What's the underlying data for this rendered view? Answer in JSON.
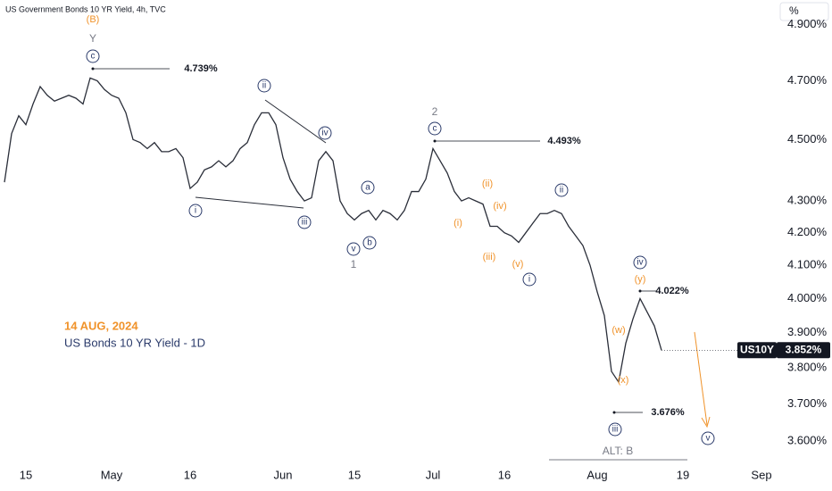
{
  "header": "US Government Bonds 10 YR Yield, 4h, TVC",
  "unit_label": "%",
  "date_note": "14 AUG, 2024",
  "chart_note": "US Bonds 10 YR Yield - 1D",
  "symbol": "US10Y",
  "last_label": "3.852%",
  "chart_data": {
    "type": "line",
    "log_scale": true,
    "grid": false,
    "color": "#2a2e39",
    "categories": [
      null,
      null,
      null,
      "15",
      null,
      null,
      null,
      null,
      null,
      null,
      null,
      null,
      null,
      null,
      null,
      "May",
      null,
      null,
      null,
      null,
      null,
      null,
      null,
      null,
      null,
      null,
      "16",
      null,
      null,
      null,
      null,
      null,
      null,
      null,
      null,
      null,
      null,
      null,
      null,
      "Jun",
      null,
      null,
      null,
      null,
      null,
      null,
      null,
      null,
      null,
      "15",
      null,
      null,
      null,
      null,
      null,
      null,
      null,
      null,
      null,
      null,
      "Jul",
      null,
      null,
      null,
      null,
      null,
      null,
      null,
      null,
      null,
      "16",
      null,
      null,
      null,
      null,
      null,
      null,
      null,
      null,
      null,
      null,
      null,
      null,
      "Aug",
      null,
      null,
      null,
      null,
      null,
      null,
      null,
      null,
      null,
      null,
      null,
      "19",
      null,
      null,
      null,
      null,
      null,
      null,
      null,
      null,
      null,
      null,
      "Sep",
      null
    ],
    "values": [
      4.36,
      4.52,
      4.58,
      4.55,
      4.62,
      4.68,
      4.65,
      4.63,
      4.64,
      4.65,
      4.64,
      4.62,
      4.71,
      4.7,
      4.67,
      4.65,
      4.64,
      4.59,
      4.5,
      4.49,
      4.47,
      4.49,
      4.46,
      4.46,
      4.47,
      4.44,
      4.34,
      4.36,
      4.4,
      4.41,
      4.43,
      4.41,
      4.43,
      4.47,
      4.49,
      4.55,
      4.59,
      4.59,
      4.55,
      4.44,
      4.37,
      4.33,
      4.3,
      4.31,
      4.43,
      4.46,
      4.43,
      4.3,
      4.26,
      4.24,
      4.26,
      4.27,
      4.24,
      4.27,
      4.26,
      4.24,
      4.27,
      4.33,
      4.33,
      4.37,
      4.47,
      4.43,
      4.39,
      4.33,
      4.3,
      4.31,
      4.3,
      4.29,
      4.22,
      4.22,
      4.2,
      4.19,
      4.17,
      4.2,
      4.23,
      4.26,
      4.26,
      4.27,
      4.26,
      4.22,
      4.19,
      4.16,
      4.1,
      4.02,
      3.95,
      3.79,
      3.76,
      3.87,
      3.94,
      4.0,
      3.96,
      3.92,
      3.85,
      null,
      null,
      null,
      null,
      null,
      null,
      null,
      null,
      null,
      null,
      null,
      null,
      null,
      null,
      null
    ],
    "ylim": [
      3.55,
      4.99
    ],
    "yticks": [
      {
        "value": 3.6,
        "label": "3.600%"
      },
      {
        "value": 3.7,
        "label": "3.700%"
      },
      {
        "value": 3.8,
        "label": "3.800%"
      },
      {
        "value": 3.9,
        "label": "3.900%"
      },
      {
        "value": 4.0,
        "label": "4.000%"
      },
      {
        "value": 4.1,
        "label": "4.100%"
      },
      {
        "value": 4.2,
        "label": "4.200%"
      },
      {
        "value": 4.3,
        "label": "4.300%"
      },
      {
        "value": 4.5,
        "label": "4.500%"
      },
      {
        "value": 4.7,
        "label": "4.700%"
      },
      {
        "value": 4.9,
        "label": "4.900%"
      }
    ],
    "annotations": [
      {
        "text": "(B)",
        "style": "orange"
      },
      {
        "text": "Y",
        "style": "gray"
      },
      {
        "text": "c",
        "style": "circle"
      },
      {
        "text": "4.739%",
        "style": "price"
      },
      {
        "text": "ii",
        "style": "circle"
      },
      {
        "text": "iv",
        "style": "circle"
      },
      {
        "text": "i",
        "style": "circle"
      },
      {
        "text": "iii",
        "style": "circle"
      },
      {
        "text": "v",
        "style": "circle"
      },
      {
        "text": "1",
        "style": "gray"
      },
      {
        "text": "a",
        "style": "circle"
      },
      {
        "text": "b",
        "style": "circle"
      },
      {
        "text": "2",
        "style": "gray"
      },
      {
        "text": "c",
        "style": "circle"
      },
      {
        "text": "4.493%",
        "style": "price"
      },
      {
        "text": "(ii)",
        "style": "orange"
      },
      {
        "text": "(iv)",
        "style": "orange"
      },
      {
        "text": "(i)",
        "style": "orange"
      },
      {
        "text": "(iii)",
        "style": "orange"
      },
      {
        "text": "(v)",
        "style": "orange"
      },
      {
        "text": "ii",
        "style": "circle"
      },
      {
        "text": "i",
        "style": "circle"
      },
      {
        "text": "iv",
        "style": "circle"
      },
      {
        "text": "(y)",
        "style": "orange"
      },
      {
        "text": "4.022%",
        "style": "price"
      },
      {
        "text": "(w)",
        "style": "orange"
      },
      {
        "text": "(x)",
        "style": "orange"
      },
      {
        "text": "3.676%",
        "style": "price"
      },
      {
        "text": "iii",
        "style": "circle"
      },
      {
        "text": "ALT: B",
        "style": "gray"
      },
      {
        "text": "v",
        "style": "circle"
      }
    ]
  }
}
